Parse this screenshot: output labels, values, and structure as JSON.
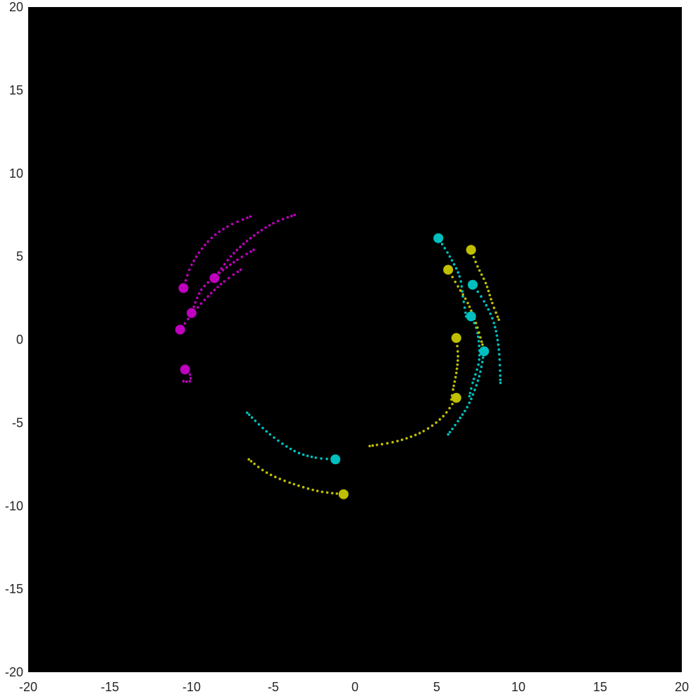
{
  "chart_data": {
    "type": "scatter",
    "title": "",
    "xlabel": "",
    "ylabel": "",
    "xlim": [
      -20,
      20
    ],
    "ylim": [
      -20,
      20
    ],
    "grid": false,
    "legend": "none",
    "background": "#000000",
    "x_ticks": [
      -20,
      -15,
      -10,
      -5,
      0,
      5,
      10,
      15,
      20
    ],
    "y_ticks": [
      -20,
      -15,
      -10,
      -5,
      0,
      5,
      10,
      15,
      20
    ],
    "x_tick_labels": [
      "-20",
      "-15",
      "-10",
      "-5",
      "0",
      "5",
      "10",
      "15",
      "20"
    ],
    "y_tick_labels": [
      "-20",
      "-15",
      "-10",
      "-5",
      "0",
      "5",
      "10",
      "15",
      "20"
    ],
    "series": [
      {
        "color": "#bf00bf",
        "tracks": [
          {
            "head": [
              -10.5,
              3.1
            ],
            "trail": [
              [
                -10.5,
                3.1
              ],
              [
                -10.0,
                4.5
              ],
              [
                -9.0,
                5.9
              ],
              [
                -7.8,
                6.8
              ],
              [
                -6.4,
                7.4
              ]
            ]
          },
          {
            "head": [
              -8.6,
              3.7
            ],
            "trail": [
              [
                -8.6,
                3.7
              ],
              [
                -7.6,
                5.0
              ],
              [
                -6.4,
                6.1
              ],
              [
                -5.0,
                7.0
              ],
              [
                -3.7,
                7.5
              ]
            ]
          },
          {
            "head": [
              -10.0,
              1.6
            ],
            "trail": [
              [
                -10.0,
                1.6
              ],
              [
                -9.4,
                3.0
              ],
              [
                -8.3,
                4.0
              ],
              [
                -7.2,
                4.8
              ],
              [
                -6.2,
                5.4
              ]
            ]
          },
          {
            "head": [
              -10.7,
              0.6
            ],
            "trail": [
              [
                -10.7,
                0.6
              ],
              [
                -10.0,
                1.5
              ],
              [
                -9.0,
                2.6
              ],
              [
                -8.0,
                3.5
              ],
              [
                -7.0,
                4.2
              ]
            ]
          },
          {
            "head": [
              -10.4,
              -1.8
            ],
            "trail": [
              [
                -10.4,
                -1.8
              ],
              [
                -10.1,
                -2.1
              ],
              [
                -10.1,
                -2.5
              ],
              [
                -10.5,
                -2.5
              ]
            ]
          }
        ]
      },
      {
        "color": "#00bfbf",
        "tracks": [
          {
            "head": [
              5.1,
              6.1
            ],
            "trail": [
              [
                5.1,
                6.1
              ],
              [
                5.8,
                5.0
              ],
              [
                6.4,
                3.8
              ],
              [
                6.6,
                2.6
              ],
              [
                6.8,
                1.4
              ]
            ]
          },
          {
            "head": [
              7.2,
              3.3
            ],
            "trail": [
              [
                7.2,
                3.3
              ],
              [
                7.9,
                2.3
              ],
              [
                8.5,
                1.0
              ],
              [
                8.8,
                -0.6
              ],
              [
                8.9,
                -2.6
              ]
            ]
          },
          {
            "head": [
              7.1,
              1.4
            ],
            "trail": [
              [
                7.1,
                1.4
              ],
              [
                7.5,
                0.4
              ],
              [
                7.6,
                -1.2
              ],
              [
                7.2,
                -2.6
              ],
              [
                7.0,
                -3.4
              ]
            ]
          },
          {
            "head": [
              7.9,
              -0.7
            ],
            "trail": [
              [
                7.9,
                -0.7
              ],
              [
                7.6,
                -2.2
              ],
              [
                7.0,
                -3.8
              ],
              [
                6.3,
                -4.9
              ],
              [
                5.7,
                -5.7
              ]
            ]
          },
          {
            "head": [
              -1.2,
              -7.2
            ],
            "trail": [
              [
                -1.2,
                -7.2
              ],
              [
                -2.4,
                -7.1
              ],
              [
                -3.7,
                -6.7
              ],
              [
                -5.2,
                -5.7
              ],
              [
                -6.6,
                -4.4
              ]
            ]
          }
        ]
      },
      {
        "color": "#bfbf00",
        "tracks": [
          {
            "head": [
              7.1,
              5.4
            ],
            "trail": [
              [
                7.1,
                5.4
              ],
              [
                7.5,
                4.4
              ],
              [
                8.0,
                3.4
              ],
              [
                8.4,
                2.2
              ],
              [
                8.8,
                1.2
              ]
            ]
          },
          {
            "head": [
              5.7,
              4.2
            ],
            "trail": [
              [
                5.7,
                4.2
              ],
              [
                6.3,
                3.2
              ],
              [
                6.9,
                2.2
              ],
              [
                7.4,
                1.0
              ],
              [
                7.8,
                -0.3
              ]
            ]
          },
          {
            "head": [
              6.2,
              0.1
            ],
            "trail": [
              [
                6.2,
                0.1
              ],
              [
                6.3,
                -1.0
              ],
              [
                6.2,
                -2.0
              ],
              [
                6.0,
                -3.0
              ],
              [
                5.9,
                -3.6
              ]
            ]
          },
          {
            "head": [
              6.2,
              -3.5
            ],
            "trail": [
              [
                6.2,
                -3.5
              ],
              [
                5.4,
                -4.6
              ],
              [
                4.2,
                -5.5
              ],
              [
                2.6,
                -6.1
              ],
              [
                0.9,
                -6.4
              ]
            ]
          },
          {
            "head": [
              -0.7,
              -9.3
            ],
            "trail": [
              [
                -0.7,
                -9.3
              ],
              [
                -2.3,
                -9.1
              ],
              [
                -4.0,
                -8.6
              ],
              [
                -5.4,
                -8.0
              ],
              [
                -6.5,
                -7.2
              ]
            ]
          }
        ]
      }
    ]
  }
}
